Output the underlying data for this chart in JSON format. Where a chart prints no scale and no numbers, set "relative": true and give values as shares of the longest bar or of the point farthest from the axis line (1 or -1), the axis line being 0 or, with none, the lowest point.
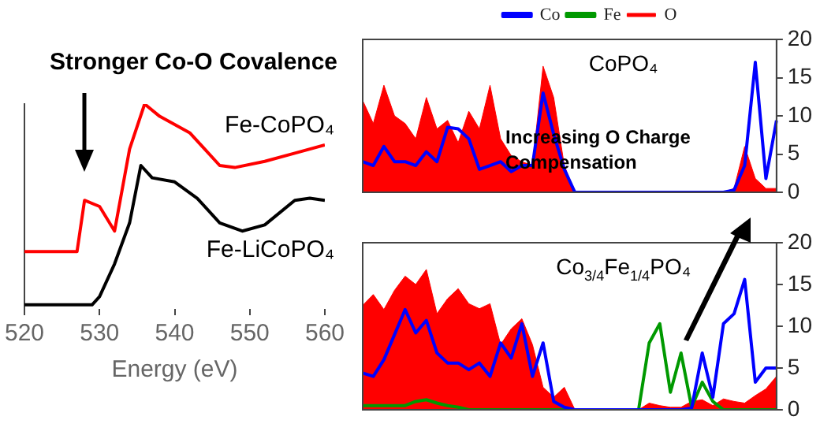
{
  "chart_data": [
    {
      "type": "line",
      "title": "Stronger Co-O Covalence",
      "xlabel": "Energy (eV)",
      "relative": true,
      "xlim": [
        520,
        560
      ],
      "xticks": [
        520,
        530,
        540,
        550,
        560
      ],
      "grid": false,
      "legend": false,
      "marker": "none",
      "series": [
        {
          "name": "Fe-CoPO₄",
          "color": "#ff0000",
          "x": [
            520,
            527,
            528,
            530,
            532,
            534,
            536,
            538,
            542,
            546,
            548,
            552,
            556,
            560
          ],
          "values": [
            0.28,
            0.28,
            0.53,
            0.5,
            0.38,
            0.78,
            1,
            0.94,
            0.86,
            0.7,
            0.69,
            0.72,
            0.76,
            0.8
          ]
        },
        {
          "name": "Fe-LiCoPO₄",
          "color": "#000000",
          "x": [
            520,
            529,
            530,
            532,
            534,
            535.5,
            537,
            540,
            543,
            546,
            549,
            552,
            556,
            558,
            560
          ],
          "values": [
            0.02,
            0.02,
            0.06,
            0.22,
            0.42,
            0.7,
            0.64,
            0.62,
            0.54,
            0.42,
            0.38,
            0.41,
            0.53,
            0.54,
            0.53
          ]
        }
      ]
    },
    {
      "type": "line",
      "title": "CoPO₄",
      "annotations": [
        "Increasing O Charge Compensation"
      ],
      "categories": [
        null,
        null,
        null,
        null,
        null,
        null,
        null,
        null,
        null,
        null,
        null,
        null,
        null,
        null,
        null,
        null,
        null,
        null,
        null,
        null,
        null,
        null,
        null,
        null,
        null,
        null,
        null,
        null,
        null,
        null,
        null,
        null,
        null,
        null,
        null,
        null,
        null,
        null,
        null,
        null
      ],
      "ylim": [
        0,
        20
      ],
      "yticks": [
        0,
        5,
        10,
        15,
        20
      ],
      "tick_labels": "y",
      "grid": false,
      "legend": "top",
      "marker": "none",
      "series": [
        {
          "name": "Co",
          "color": "#0000ff",
          "values": [
            4,
            3.5,
            6,
            4,
            4,
            3.5,
            5.3,
            4,
            8.5,
            8.3,
            7,
            3,
            3.5,
            4,
            2.7,
            3.5,
            3.5,
            13,
            7.6,
            3,
            0,
            0,
            0,
            0,
            0,
            0,
            0,
            0,
            0,
            0,
            0,
            0,
            0,
            0,
            0,
            0.3,
            3.5,
            17,
            1.8,
            9.4
          ]
        },
        {
          "name": "Fe",
          "color": "#009900",
          "values": [
            null,
            null,
            null,
            null,
            null,
            null,
            null,
            null,
            null,
            null,
            null,
            null,
            null,
            null,
            null,
            null,
            null,
            null,
            null,
            null,
            null,
            null,
            null,
            null,
            null,
            null,
            null,
            null,
            null,
            null,
            null,
            null,
            null,
            null,
            null,
            null,
            null,
            null,
            null,
            null
          ]
        },
        {
          "name": "O",
          "type": "area",
          "color": "#ff0000",
          "values": [
            12,
            9,
            14,
            10,
            9,
            7,
            12.4,
            8.3,
            9.4,
            6.5,
            10.6,
            8.3,
            14,
            7,
            4.8,
            4,
            3.5,
            16.5,
            12.4,
            3.5,
            0,
            0,
            0,
            0,
            0,
            0,
            0,
            0,
            0,
            0,
            0,
            0,
            0,
            0,
            0,
            0.5,
            6,
            1.8,
            0.5,
            0.5
          ]
        }
      ]
    },
    {
      "type": "line",
      "title": "Co$_{3/4}$Fe$_{1/4}$PO₄",
      "categories": [
        null,
        null,
        null,
        null,
        null,
        null,
        null,
        null,
        null,
        null,
        null,
        null,
        null,
        null,
        null,
        null,
        null,
        null,
        null,
        null,
        null,
        null,
        null,
        null,
        null,
        null,
        null,
        null,
        null,
        null,
        null,
        null,
        null,
        null,
        null,
        null,
        null,
        null,
        null,
        null
      ],
      "ylim": [
        0,
        20
      ],
      "yticks": [
        0,
        5,
        10,
        15,
        20
      ],
      "tick_labels": "y",
      "grid": false,
      "marker": "none",
      "series": [
        {
          "color": "#0000ff",
          "values": [
            4.4,
            4,
            6,
            9,
            12,
            9.2,
            10.7,
            6.8,
            5.6,
            5.6,
            4.8,
            5.6,
            4,
            8,
            6.2,
            10.3,
            4,
            8,
            1,
            0.3,
            0,
            0,
            0,
            0,
            0,
            0,
            0,
            0,
            0,
            0,
            0,
            0.2,
            6.8,
            1.5,
            10.3,
            11.5,
            15.6,
            3.3,
            5,
            5
          ]
        },
        {
          "color": "#009900",
          "values": [
            0.5,
            0.5,
            0.5,
            0.5,
            0.5,
            1,
            1.2,
            0.8,
            0.5,
            0.3,
            0,
            0,
            0,
            0,
            0,
            0,
            0,
            0,
            0,
            0,
            0,
            0,
            0,
            0,
            0,
            0,
            0,
            8,
            10.3,
            2.1,
            6.8,
            0.3,
            3.3,
            1,
            0,
            0,
            0,
            0,
            0,
            0
          ]
        },
        {
          "type": "area",
          "color": "#ff0000",
          "values": [
            12.5,
            13.8,
            12,
            14.3,
            16,
            15,
            16.8,
            11.5,
            13.3,
            14.5,
            12.7,
            12.1,
            12.7,
            7.8,
            9.7,
            10.9,
            7.8,
            2.7,
            1.5,
            2.7,
            0,
            0,
            0,
            0,
            0,
            0,
            0,
            0.8,
            0.5,
            0.3,
            0.3,
            1,
            1.2,
            0.5,
            1.3,
            1,
            0.8,
            1.7,
            2.5,
            4
          ]
        }
      ]
    }
  ]
}
